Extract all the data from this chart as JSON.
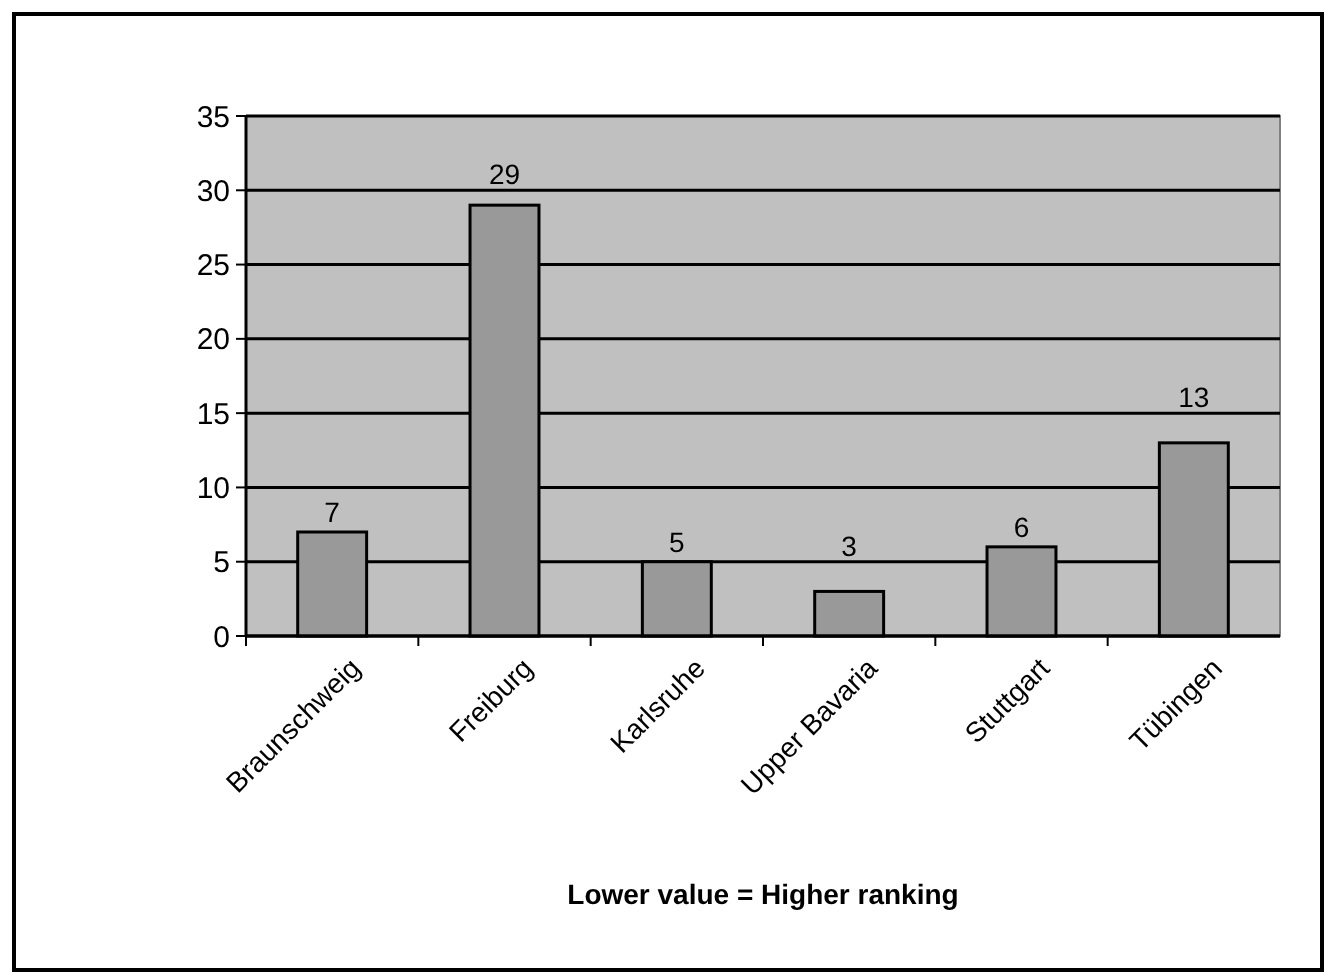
{
  "chart_data": {
    "type": "bar",
    "xlabel": "Lower value = Higher ranking",
    "categories": [
      "Braunschweig",
      "Freiburg",
      "Karlsruhe",
      "Upper Bavaria",
      "Stuttgart",
      "Tübingen"
    ],
    "values": [
      7,
      29,
      5,
      3,
      6,
      13
    ],
    "color": "#999999",
    "ylim": [
      0,
      35
    ],
    "yticks": [
      0,
      5,
      10,
      15,
      20,
      25,
      30,
      35
    ],
    "grid": "y",
    "data_labels": true
  }
}
